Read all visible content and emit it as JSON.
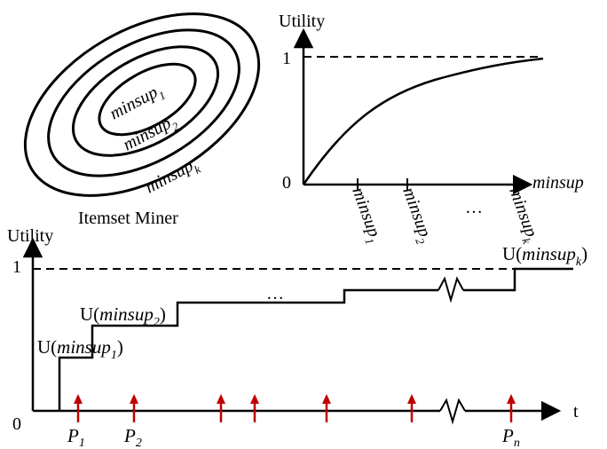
{
  "colors": {
    "ink": "#000000",
    "arrow": "#c00000",
    "background": "#ffffff"
  },
  "ellipse_panel": {
    "label": "Itemset Miner",
    "rings": [
      {
        "label": "minsup",
        "sub": "1"
      },
      {
        "label": "minsup",
        "sub": "2"
      },
      {
        "label": "…",
        "sub": ""
      },
      {
        "label": "minsup",
        "sub": "k"
      }
    ]
  },
  "curve_panel": {
    "y_axis_label": "Utility",
    "y_tick_top": "1",
    "y_tick_zero": "0",
    "x_axis_label": "minsup",
    "x_ticks": [
      {
        "label": "minsup",
        "sub": "1"
      },
      {
        "label": "minsup",
        "sub": "2"
      },
      {
        "label": "…",
        "sub": ""
      },
      {
        "label": "minsup",
        "sub": "k"
      }
    ]
  },
  "timeline_panel": {
    "y_axis_label": "Utility",
    "y_tick_top": "1",
    "y_tick_zero": "0",
    "x_axis_label": "t",
    "ellipsis": "…",
    "step_labels": [
      {
        "prefix": "U(",
        "label": "minsup",
        "sub": "1",
        "suffix": ")"
      },
      {
        "prefix": "U(",
        "label": "minsup",
        "sub": "2",
        "suffix": ")"
      },
      {
        "prefix": "U(",
        "label": "minsup",
        "sub": "k",
        "suffix": ")"
      }
    ],
    "pattern_labels": [
      {
        "label": "P",
        "sub": "1"
      },
      {
        "label": "P",
        "sub": "2"
      },
      {
        "label": "P",
        "sub": "n"
      }
    ]
  }
}
